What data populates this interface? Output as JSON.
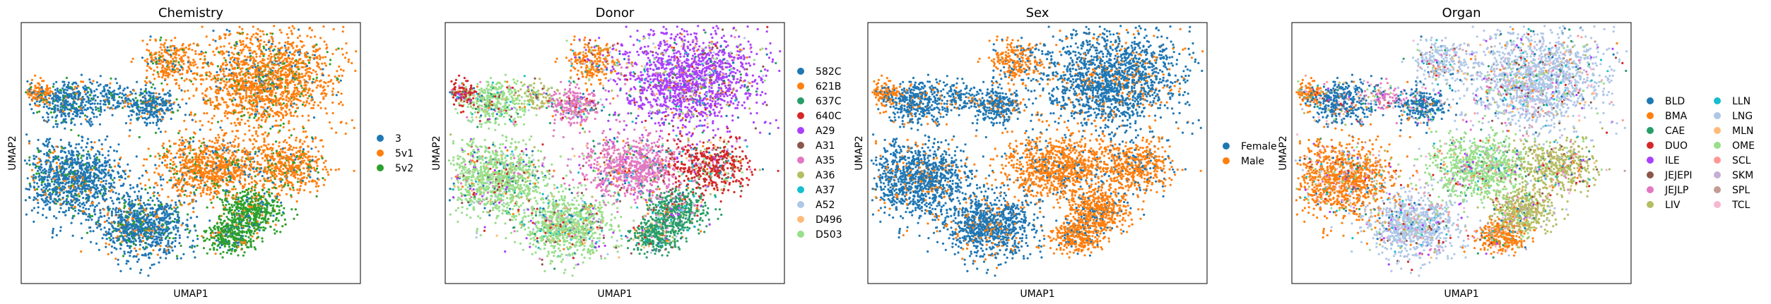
{
  "chart_data": [
    {
      "type": "scatter",
      "title": "Chemistry",
      "xlabel": "UMAP1",
      "ylabel": "UMAP2",
      "grid": false,
      "legend_position": "right",
      "legend_columns": 1,
      "legend": [
        {
          "label": "3",
          "color": "#1f77b4"
        },
        {
          "label": "5v1",
          "color": "#ff7f0e"
        },
        {
          "label": "5v2",
          "color": "#2ca02c"
        }
      ]
    },
    {
      "type": "scatter",
      "title": "Donor",
      "xlabel": "UMAP1",
      "ylabel": "UMAP2",
      "grid": false,
      "legend_position": "right",
      "legend_columns": 1,
      "legend": [
        {
          "label": "582C",
          "color": "#1f77b4"
        },
        {
          "label": "621B",
          "color": "#ff7f0e"
        },
        {
          "label": "637C",
          "color": "#279e68"
        },
        {
          "label": "640C",
          "color": "#d62728"
        },
        {
          "label": "A29",
          "color": "#aa40fc"
        },
        {
          "label": "A31",
          "color": "#8c564b"
        },
        {
          "label": "A35",
          "color": "#e377c2"
        },
        {
          "label": "A36",
          "color": "#b5bd61"
        },
        {
          "label": "A37",
          "color": "#17becf"
        },
        {
          "label": "A52",
          "color": "#aec7e8"
        },
        {
          "label": "D496",
          "color": "#ffbb78"
        },
        {
          "label": "D503",
          "color": "#98df8a"
        }
      ]
    },
    {
      "type": "scatter",
      "title": "Sex",
      "xlabel": "UMAP1",
      "ylabel": "UMAP2",
      "grid": false,
      "legend_position": "right",
      "legend_columns": 1,
      "legend": [
        {
          "label": "Female",
          "color": "#1f77b4"
        },
        {
          "label": "Male",
          "color": "#ff7f0e"
        }
      ]
    },
    {
      "type": "scatter",
      "title": "Organ",
      "xlabel": "UMAP1",
      "ylabel": "UMAP2",
      "grid": false,
      "legend_position": "right",
      "legend_columns": 2,
      "legend": [
        {
          "label": "BLD",
          "color": "#1f77b4"
        },
        {
          "label": "BMA",
          "color": "#ff7f0e"
        },
        {
          "label": "CAE",
          "color": "#279e68"
        },
        {
          "label": "DUO",
          "color": "#d62728"
        },
        {
          "label": "ILE",
          "color": "#aa40fc"
        },
        {
          "label": "JEJEPI",
          "color": "#8c564b"
        },
        {
          "label": "JEJLP",
          "color": "#e377c2"
        },
        {
          "label": "LIV",
          "color": "#b5bd61"
        },
        {
          "label": "LLN",
          "color": "#17becf"
        },
        {
          "label": "LNG",
          "color": "#aec7e8"
        },
        {
          "label": "MLN",
          "color": "#ffbb78"
        },
        {
          "label": "OME",
          "color": "#98df8a"
        },
        {
          "label": "SCL",
          "color": "#ff9896"
        },
        {
          "label": "SKM",
          "color": "#c5b0d5"
        },
        {
          "label": "SPL",
          "color": "#c49c94"
        },
        {
          "label": "TCL",
          "color": "#f7b6d2"
        }
      ]
    }
  ]
}
